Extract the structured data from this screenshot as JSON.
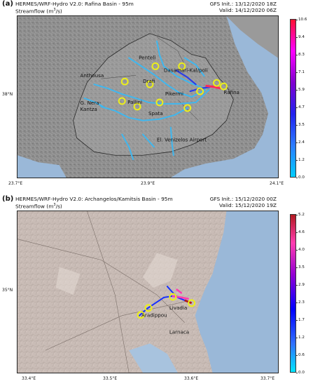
{
  "panel_a": {
    "label": "(a)",
    "title_line1": "HERMES/WRF-Hydro V2.0: Rafina Basin - 95m",
    "title_line2": "Streamflow (m",
    "unit_sup": "3",
    "unit_end": "/s)",
    "gfs_init": "GFS Init.: 13/12/2020 18Z",
    "valid": "Valid: 14/12/2020 06Z",
    "lat_label": "38°N",
    "lon_labels": [
      "23.7°E",
      "23.9°E",
      "24.1°E"
    ],
    "colorbar_ticks": [
      "10.6",
      "9.4",
      "8.3",
      "7.1",
      "5.9",
      "4.7",
      "3.5",
      "2.4",
      "1.2",
      "0.0"
    ],
    "places": [
      "Penteli",
      "Dasamari-Kal/poli",
      "Anthousa",
      "Drafi",
      "Rafina",
      "Pikermi",
      "G. Nera-",
      "Kantza",
      "Pallini",
      "Spata",
      "El. Venizelos Airport"
    ]
  },
  "panel_b": {
    "label": "(b)",
    "title_line1": "HERMES/WRF-Hydro V2.0: Archangelos/Kamitsis Basin - 95m",
    "title_line2": "Streamflow (m",
    "unit_sup": "3",
    "unit_end": "/s)",
    "gfs_init": "GFS Init.: 15/12/2020 00Z",
    "valid": "Valid: 15/12/2020 19Z",
    "lat_label": "35°N",
    "lon_labels": [
      "33.4°E",
      "33.5°E",
      "33.6°E",
      "33.7°E"
    ],
    "colorbar_ticks": [
      "5.2",
      "4.6",
      "4.0",
      "3.5",
      "2.9",
      "2.3",
      "1.7",
      "1.2",
      "0.6",
      "0.0"
    ],
    "places": [
      "Livadia",
      "Aradippou",
      "Larnaca"
    ]
  },
  "colors": {
    "sea": "#9ab8d8",
    "land_a": "#8a8a8a",
    "land_b": "#c9bcb6",
    "station_ring": "#ecef1a"
  }
}
